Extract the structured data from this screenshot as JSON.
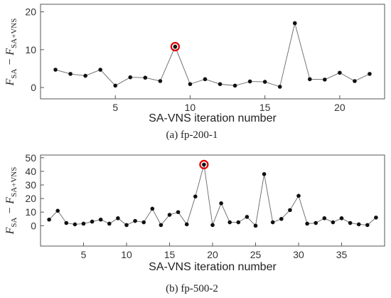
{
  "chart_data": [
    {
      "type": "line",
      "caption": "(a) fp-200-1",
      "xlabel": "SA-VNS iteration number",
      "ylabel": {
        "main": "F",
        "sub1": "SA",
        "minus": " − ",
        "sub2": "SA+VNS"
      },
      "x": [
        1,
        2,
        3,
        4,
        5,
        6,
        7,
        8,
        9,
        10,
        11,
        12,
        13,
        14,
        15,
        16,
        17,
        18,
        19,
        20,
        21,
        22
      ],
      "values": [
        4.7,
        3.6,
        3.1,
        4.7,
        0.5,
        2.7,
        2.6,
        1.7,
        10.8,
        0.9,
        2.2,
        0.9,
        0.5,
        1.6,
        1.5,
        0.2,
        17.0,
        2.2,
        2.1,
        3.9,
        1.7,
        3.6
      ],
      "highlight_x": 9,
      "xlim": [
        0,
        23
      ],
      "ylim": [
        -3,
        22
      ],
      "xticks": [
        5,
        10,
        15,
        20
      ],
      "yticks": [
        0,
        10,
        20
      ],
      "grid": false,
      "marker_color": "#111111",
      "line_color": "#666666",
      "highlight_color": "#e00000"
    },
    {
      "type": "line",
      "caption": "(b) fp-500-2",
      "xlabel": "SA-VNS iteration number",
      "ylabel": {
        "main": "F",
        "sub1": "SA",
        "minus": " − ",
        "sub2": "SA+VNS"
      },
      "x": [
        1,
        2,
        3,
        4,
        5,
        6,
        7,
        8,
        9,
        10,
        11,
        12,
        13,
        14,
        15,
        16,
        17,
        18,
        19,
        20,
        21,
        22,
        23,
        24,
        25,
        26,
        27,
        28,
        29,
        30,
        31,
        32,
        33,
        34,
        35,
        36,
        37,
        38,
        39
      ],
      "values": [
        4.5,
        11.0,
        2.0,
        1.0,
        1.5,
        3.0,
        4.5,
        1.5,
        5.5,
        0.5,
        3.5,
        2.5,
        12.5,
        0.5,
        8.0,
        10.0,
        1.0,
        21.5,
        45.0,
        0.5,
        16.5,
        2.5,
        2.5,
        6.5,
        0.0,
        38.0,
        2.5,
        5.0,
        11.5,
        22.0,
        1.5,
        2.0,
        5.5,
        2.5,
        5.5,
        2.0,
        1.0,
        0.5,
        6.0
      ],
      "highlight_x": 19,
      "xlim": [
        0,
        40
      ],
      "ylim": [
        -15,
        52
      ],
      "xticks": [
        5,
        10,
        15,
        20,
        25,
        30,
        35
      ],
      "yticks": [
        0,
        10,
        20,
        30,
        40,
        50
      ],
      "grid": false,
      "marker_color": "#111111",
      "line_color": "#666666",
      "highlight_color": "#e00000"
    }
  ]
}
